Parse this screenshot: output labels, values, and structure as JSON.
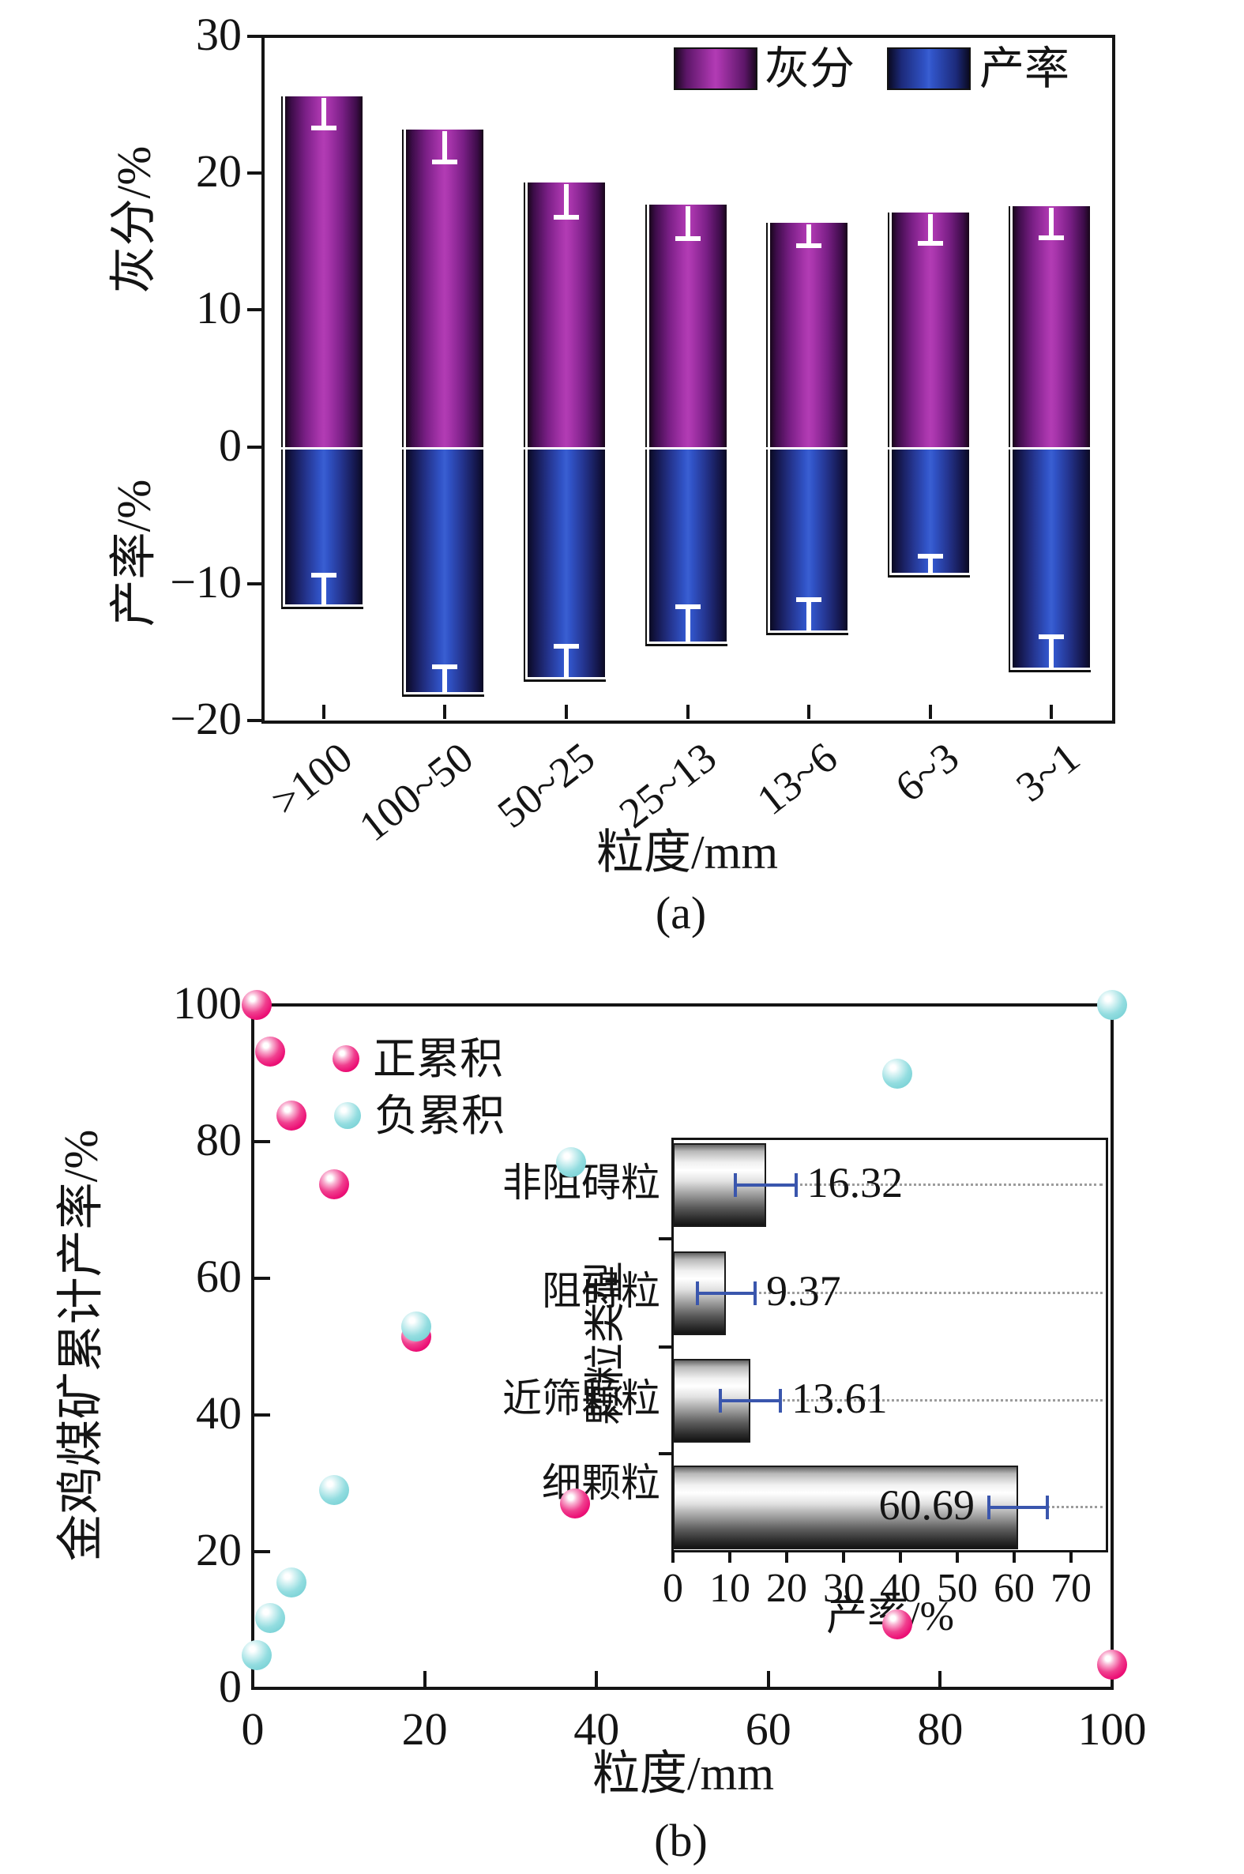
{
  "figure": {
    "panel_a_label": "(a)",
    "panel_b_label": "(b)"
  },
  "colors": {
    "ash_purple_mid": "#a835ac",
    "yield_blue_mid": "#3154c8",
    "positive_pink": "#ec0f75",
    "negative_cyan": "#7bd2d6",
    "inset_error_blue": "#3a56ad",
    "axis_black": "#141414"
  },
  "chart_data": [
    {
      "id": "panel_a",
      "type": "bar",
      "subtype": "diverging-vertical",
      "x_axis": {
        "title": "粒度/mm",
        "categories": [
          ">100",
          "100~50",
          "50~25",
          "25~13",
          "13~6",
          "6~3",
          "3~1"
        ]
      },
      "y_axis": {
        "title_positive": "灰分/%",
        "title_negative": "产率/%",
        "range": [
          -20,
          30
        ],
        "ticks": [
          {
            "label": "30",
            "value": 30
          },
          {
            "label": "20",
            "value": 20
          },
          {
            "label": "10",
            "value": 10
          },
          {
            "label": "0",
            "value": 0
          },
          {
            "label": "−10",
            "value": -10
          },
          {
            "label": "−20",
            "value": -20
          }
        ]
      },
      "legend": [
        {
          "label": "灰分",
          "color": "#a835ac"
        },
        {
          "label": "产率",
          "color": "#3154c8"
        }
      ],
      "series": [
        {
          "name": "灰分",
          "style": "purple",
          "direction": "up",
          "values": [
            25.6,
            23.2,
            19.3,
            17.7,
            16.4,
            17.1,
            17.6
          ],
          "errors": [
            2.3,
            2.4,
            2.5,
            2.5,
            1.7,
            2.2,
            2.3
          ]
        },
        {
          "name": "产率",
          "style": "blue",
          "direction": "down",
          "values": [
            11.7,
            18.1,
            17.0,
            14.4,
            13.6,
            9.4,
            16.3
          ],
          "errors": [
            2.5,
            2.2,
            2.6,
            2.9,
            2.6,
            1.6,
            2.6
          ]
        }
      ]
    },
    {
      "id": "panel_b",
      "type": "scatter",
      "x_axis": {
        "title": "粒度/mm",
        "range": [
          0,
          100
        ],
        "ticks": [
          {
            "label": "0",
            "value": 0
          },
          {
            "label": "20",
            "value": 20
          },
          {
            "label": "40",
            "value": 40
          },
          {
            "label": "60",
            "value": 60
          },
          {
            "label": "80",
            "value": 80
          },
          {
            "label": "100",
            "value": 100
          }
        ]
      },
      "y_axis": {
        "title": "金鸡煤矿累计产率/%",
        "range": [
          0,
          100
        ],
        "ticks": [
          {
            "label": "0",
            "value": 0
          },
          {
            "label": "20",
            "value": 20
          },
          {
            "label": "40",
            "value": 40
          },
          {
            "label": "60",
            "value": 60
          },
          {
            "label": "80",
            "value": 80
          },
          {
            "label": "100",
            "value": 100
          }
        ]
      },
      "legend": [
        {
          "label": "正累积",
          "style": "pink"
        },
        {
          "label": "负累积",
          "style": "cyan"
        }
      ],
      "series": [
        {
          "name": "正累积",
          "style": "pink",
          "points": [
            [
              0.5,
              100
            ],
            [
              2,
              93.2
            ],
            [
              4.5,
              83.8
            ],
            [
              9.5,
              73.8
            ],
            [
              19,
              51.4
            ],
            [
              37.5,
              27
            ],
            [
              75,
              9.4
            ],
            [
              100,
              3.5
            ]
          ]
        },
        {
          "name": "负累积",
          "style": "cyan",
          "points": [
            [
              0.5,
              4.8
            ],
            [
              2,
              10.3
            ],
            [
              4.5,
              15.5
            ],
            [
              9.5,
              29
            ],
            [
              19,
              52.9
            ],
            [
              37,
              77
            ],
            [
              75,
              90
            ],
            [
              100,
              100
            ]
          ]
        }
      ],
      "inset": {
        "type": "bar",
        "subtype": "horizontal",
        "x_axis": {
          "title": "产率/%",
          "range": [
            0,
            76
          ],
          "ticks": [
            {
              "label": "0",
              "value": 0
            },
            {
              "label": "10",
              "value": 10
            },
            {
              "label": "20",
              "value": 20
            },
            {
              "label": "30",
              "value": 30
            },
            {
              "label": "40",
              "value": 40
            },
            {
              "label": "50",
              "value": 50
            },
            {
              "label": "60",
              "value": 60
            },
            {
              "label": "70",
              "value": 70
            }
          ]
        },
        "y_axis": {
          "title": "颗粒类型"
        },
        "categories": [
          "非阻碍粒",
          "阻碍粒",
          "近筛颗粒",
          "细颗粒"
        ],
        "values": [
          16.32,
          9.37,
          13.61,
          60.69
        ],
        "value_labels": [
          "16.32",
          "9.37",
          "13.61",
          "60.69"
        ],
        "errors": [
          5.3,
          5.1,
          5.3,
          5.1
        ]
      }
    }
  ]
}
